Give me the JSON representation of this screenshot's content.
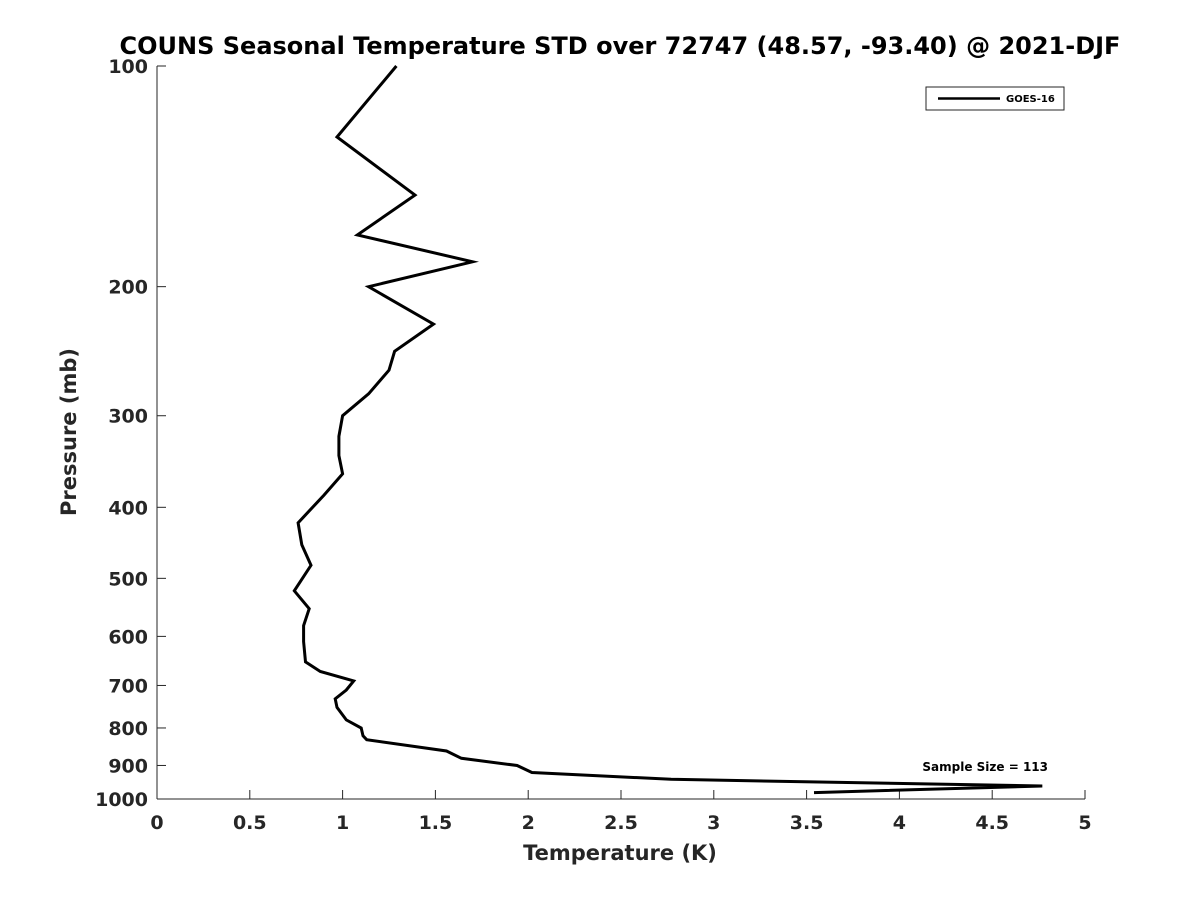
{
  "chart_data": {
    "type": "line",
    "title": "COUNS Seasonal Temperature STD over 72747 (48.57, -93.40) @ 2021-DJF",
    "xlabel": "Temperature (K)",
    "ylabel": "Pressure (mb)",
    "xlim": [
      0,
      5
    ],
    "ylim": [
      100,
      1000
    ],
    "y_scale": "log",
    "y_reversed": true,
    "x_ticks": [
      "0",
      "0.5",
      "1",
      "1.5",
      "2",
      "2.5",
      "3",
      "3.5",
      "4",
      "4.5",
      "5"
    ],
    "y_ticks": [
      "100",
      "200",
      "300",
      "400",
      "500",
      "600",
      "700",
      "800",
      "900",
      "1000"
    ],
    "grid": false,
    "legend": {
      "placement": "top-right",
      "entries": [
        "GOES-16"
      ]
    },
    "annotation": "Sample Size = 113",
    "series": [
      {
        "name": "GOES-16",
        "color": "#000000",
        "x": [
          1.29,
          0.97,
          1.39,
          1.08,
          1.7,
          1.14,
          1.49,
          1.28,
          1.25,
          1.14,
          1.0,
          0.98,
          0.98,
          1.0,
          0.9,
          0.76,
          0.78,
          0.83,
          0.74,
          0.82,
          0.79,
          0.79,
          0.8,
          0.88,
          1.06,
          1.02,
          0.96,
          0.97,
          1.02,
          1.1,
          1.11,
          1.13,
          1.56,
          1.64,
          1.94,
          2.02,
          2.77,
          4.77,
          3.54
        ],
        "y": [
          100,
          125,
          150,
          170,
          185,
          200,
          225,
          245,
          260,
          280,
          300,
          320,
          340,
          360,
          385,
          420,
          450,
          480,
          520,
          550,
          580,
          610,
          650,
          670,
          690,
          710,
          730,
          750,
          780,
          800,
          820,
          830,
          860,
          880,
          900,
          920,
          940,
          960,
          980
        ]
      }
    ]
  }
}
